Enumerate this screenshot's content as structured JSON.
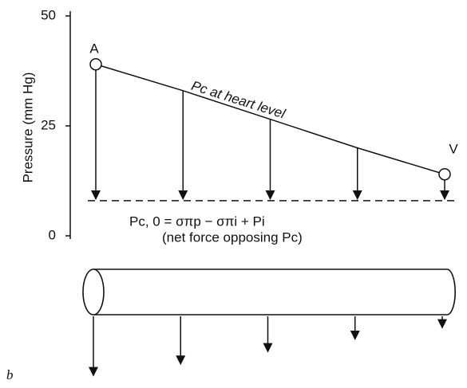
{
  "chart_data": {
    "type": "line",
    "ylabel": "Pressure (mm Hg)",
    "ylim": [
      0,
      50
    ],
    "yticks": [
      0,
      25,
      50
    ],
    "series": [
      {
        "name": "Pc at heart level",
        "color": "#111111",
        "values": [
          39,
          33,
          26.5,
          20,
          14
        ]
      }
    ],
    "point_labels": [
      "A",
      "V"
    ],
    "threshold": {
      "value": 8,
      "label": "Pc, 0 = σπp − σπi + Pi",
      "note": "(net force opposing Pc)"
    },
    "panel_label": "b"
  }
}
